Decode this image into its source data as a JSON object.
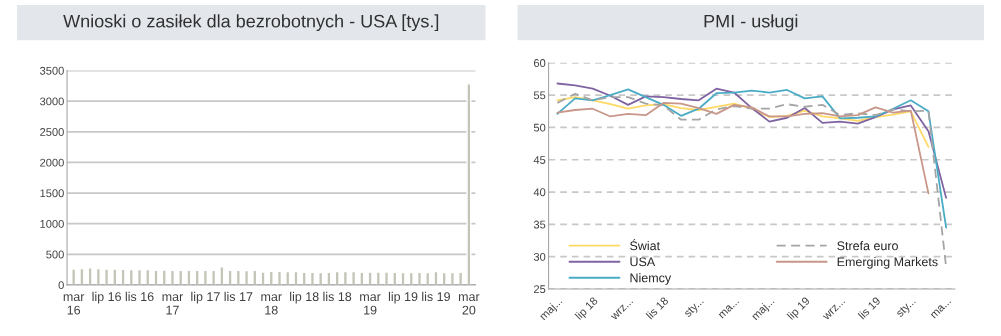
{
  "chart_data": [
    {
      "type": "bar",
      "title": "Wnioski o zasiłek dla bezrobotnych - USA [tys.]",
      "categories": [
        "mar\n16",
        null,
        null,
        null,
        "lip 16",
        null,
        null,
        null,
        "lis 16",
        null,
        null,
        null,
        "mar\n17",
        null,
        null,
        null,
        "lip 17",
        null,
        null,
        null,
        "lis 17",
        null,
        null,
        null,
        "mar\n18",
        null,
        null,
        null,
        "lip 18",
        null,
        null,
        null,
        "lis 18",
        null,
        null,
        null,
        "mar\n19",
        null,
        null,
        null,
        "lip 19",
        null,
        null,
        null,
        "lis 19",
        null,
        null,
        null,
        "mar\n20"
      ],
      "values": [
        261,
        267,
        278,
        267,
        261,
        261,
        256,
        250,
        250,
        250,
        239,
        244,
        239,
        239,
        239,
        239,
        239,
        239,
        294,
        239,
        239,
        233,
        239,
        211,
        222,
        222,
        217,
        217,
        206,
        206,
        200,
        206,
        217,
        217,
        217,
        206,
        211,
        211,
        211,
        206,
        200,
        200,
        206,
        200,
        217,
        200,
        200,
        206,
        3283
      ],
      "color": "#c4c4b8",
      "ylim": [
        0,
        3500
      ],
      "yticks": [
        0,
        500,
        1000,
        1500,
        2000,
        2500,
        3000,
        3500
      ],
      "grid": "y"
    },
    {
      "type": "line",
      "title": "PMI - usługi",
      "categories": [
        "maj...",
        null,
        "lip 18",
        null,
        "wrz...",
        null,
        "lis 18",
        null,
        "sty...",
        null,
        "ma...",
        null,
        "maj...",
        null,
        "lip 19",
        null,
        "wrz...",
        null,
        "lis 19",
        null,
        "sty...",
        null,
        "ma..."
      ],
      "series": [
        {
          "name": "Świat",
          "color": "#ffd966",
          "values": [
            54.2,
            54.7,
            54.2,
            53.6,
            52.9,
            53.4,
            53.6,
            53.0,
            52.7,
            53.2,
            53.7,
            52.9,
            51.6,
            51.8,
            52.6,
            51.7,
            51.4,
            51.0,
            51.6,
            52.0,
            52.5,
            47.0,
            null
          ]
        },
        {
          "name": "USA",
          "color": "#8064a2",
          "values": [
            56.8,
            56.5,
            56.0,
            54.9,
            53.5,
            54.8,
            54.7,
            54.4,
            54.2,
            56.0,
            55.4,
            53.0,
            50.9,
            51.5,
            53.0,
            50.7,
            50.9,
            50.6,
            51.6,
            52.8,
            53.4,
            49.4,
            39.1
          ]
        },
        {
          "name": "Niemcy",
          "color": "#4bacc6",
          "values": [
            52.1,
            54.5,
            54.2,
            55.0,
            55.9,
            54.7,
            53.5,
            51.8,
            52.9,
            55.3,
            55.4,
            55.7,
            55.4,
            55.8,
            54.5,
            54.8,
            51.4,
            51.5,
            51.7,
            52.9,
            54.2,
            52.5,
            34.5
          ]
        },
        {
          "name": "Strefa euro",
          "color": "#a5a5a5",
          "line_style": "dashed",
          "values": [
            53.8,
            55.2,
            54.2,
            54.7,
            54.7,
            53.7,
            53.4,
            51.2,
            51.2,
            52.8,
            53.3,
            52.9,
            52.9,
            53.6,
            53.2,
            53.5,
            51.9,
            52.2,
            51.9,
            52.8,
            52.5,
            52.6,
            28.4
          ]
        },
        {
          "name": "Emerging Markets",
          "color": "#c8978a",
          "values": [
            52.3,
            52.7,
            52.9,
            51.7,
            52.1,
            51.9,
            53.8,
            53.7,
            53.0,
            52.1,
            53.5,
            53.1,
            51.7,
            51.7,
            52.1,
            52.2,
            51.7,
            51.9,
            53.1,
            52.3,
            52.6,
            39.8,
            null
          ]
        }
      ],
      "ylim": [
        25,
        60
      ],
      "yticks": [
        25,
        30,
        35,
        40,
        45,
        50,
        55,
        60
      ],
      "grid": "y",
      "legend": "bottom left",
      "line_style": "solid"
    }
  ]
}
